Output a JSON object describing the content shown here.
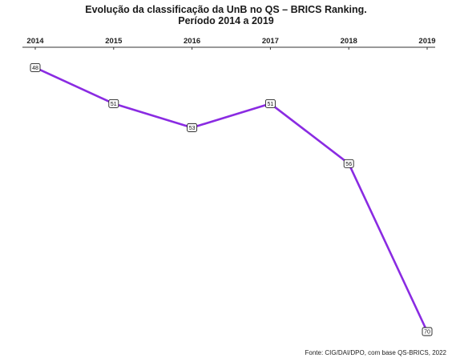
{
  "chart_data": {
    "type": "line",
    "title": "Evolução da classificação da UnB no QS – BRICS Ranking.",
    "subtitle": "Período 2014 a 2019",
    "x": [
      "2014",
      "2015",
      "2016",
      "2017",
      "2018",
      "2019"
    ],
    "series": [
      {
        "values": [
          48,
          51,
          53,
          51,
          56,
          70
        ]
      }
    ],
    "xaxis_position": "top",
    "y_reversed": true,
    "ylim": [
      46.7,
      70.2
    ],
    "grid": false,
    "legend": "none",
    "line_color": "#8a2be2",
    "caption": "Fonte: CIG/DAI/DPO, com base QS-BRICS, 2022"
  }
}
